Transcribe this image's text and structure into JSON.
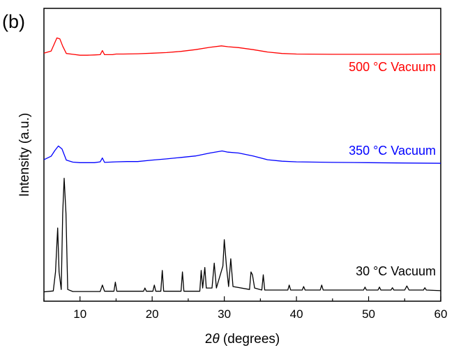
{
  "panel_label": "(b)",
  "chart_data": {
    "type": "line",
    "title": "",
    "xlabel_prefix": "2",
    "xlabel_symbol": "θ",
    "xlabel_suffix": " (degrees)",
    "ylabel": "Intensity (a.u.)",
    "xlim": [
      5,
      60
    ],
    "ylim": [
      0,
      100
    ],
    "x_ticks": [
      10,
      20,
      30,
      40,
      50,
      60
    ],
    "x_tick_labels": [
      "10",
      "20",
      "30",
      "40",
      "50",
      "60"
    ],
    "y_ticks_shown": false,
    "grid": false,
    "legend": "none (series labelled directly at right of each trace)",
    "series": [
      {
        "name": "500 °C Vacuum",
        "color": "#ff0000",
        "points": [
          [
            5,
            84.7
          ],
          [
            6,
            85.4
          ],
          [
            6.4,
            87.7
          ],
          [
            6.8,
            89.9
          ],
          [
            7.2,
            89.6
          ],
          [
            7.6,
            87.1
          ],
          [
            8.1,
            84.6
          ],
          [
            9,
            84.3
          ],
          [
            10,
            84.0
          ],
          [
            11,
            84.0
          ],
          [
            12,
            84.1
          ],
          [
            12.8,
            84.2
          ],
          [
            13.1,
            85.6
          ],
          [
            13.4,
            84.2
          ],
          [
            14.5,
            84.2
          ],
          [
            15,
            84.4
          ],
          [
            16,
            84.4
          ],
          [
            18,
            84.5
          ],
          [
            20,
            84.7
          ],
          [
            22,
            84.9
          ],
          [
            24,
            85.3
          ],
          [
            26,
            85.9
          ],
          [
            28,
            86.7
          ],
          [
            29.6,
            87.2
          ],
          [
            30.5,
            86.9
          ],
          [
            32,
            86.6
          ],
          [
            34,
            85.9
          ],
          [
            36,
            85.1
          ],
          [
            38,
            84.6
          ],
          [
            40,
            84.4
          ],
          [
            45,
            84.3
          ],
          [
            50,
            84.3
          ],
          [
            55,
            84.3
          ],
          [
            60,
            84.4
          ]
        ]
      },
      {
        "name": "350 °C Vacuum",
        "color": "#0000ff",
        "points": [
          [
            5,
            48.3
          ],
          [
            6,
            49.5
          ],
          [
            6.5,
            51.4
          ],
          [
            7,
            53.0
          ],
          [
            7.5,
            52.0
          ],
          [
            8.1,
            48.2
          ],
          [
            9,
            47.5
          ],
          [
            10,
            47.3
          ],
          [
            12,
            47.3
          ],
          [
            12.8,
            47.6
          ],
          [
            13.1,
            48.9
          ],
          [
            13.4,
            47.4
          ],
          [
            15,
            47.6
          ],
          [
            16.5,
            47.7
          ],
          [
            18,
            47.7
          ],
          [
            20,
            48.2
          ],
          [
            22,
            48.6
          ],
          [
            24,
            49.1
          ],
          [
            26,
            49.6
          ],
          [
            28,
            50.6
          ],
          [
            29.7,
            51.3
          ],
          [
            30.5,
            50.9
          ],
          [
            32,
            50.6
          ],
          [
            34,
            49.6
          ],
          [
            36,
            48.3
          ],
          [
            38,
            47.8
          ],
          [
            40,
            47.6
          ],
          [
            45,
            47.4
          ],
          [
            50,
            47.3
          ],
          [
            55,
            47.2
          ],
          [
            60,
            47.1
          ]
        ]
      },
      {
        "name": "30 °C Vacuum",
        "color": "#000000",
        "points": [
          [
            5,
            3.2
          ],
          [
            6.3,
            3.5
          ],
          [
            6.6,
            10
          ],
          [
            6.9,
            25
          ],
          [
            7.1,
            10
          ],
          [
            7.4,
            4
          ],
          [
            7.6,
            30
          ],
          [
            7.8,
            42
          ],
          [
            8.05,
            30
          ],
          [
            8.3,
            4
          ],
          [
            9,
            3.3
          ],
          [
            12.8,
            3.3
          ],
          [
            13.1,
            5.5
          ],
          [
            13.4,
            3.4
          ],
          [
            14.7,
            3.4
          ],
          [
            14.9,
            6.5
          ],
          [
            15.1,
            3.4
          ],
          [
            18.8,
            3.4
          ],
          [
            19,
            4.5
          ],
          [
            19.2,
            3.4
          ],
          [
            20.1,
            3.4
          ],
          [
            20.3,
            5.5
          ],
          [
            20.5,
            3.4
          ],
          [
            21.2,
            3.4
          ],
          [
            21.4,
            10.5
          ],
          [
            21.6,
            3.4
          ],
          [
            24.0,
            3.4
          ],
          [
            24.2,
            10
          ],
          [
            24.4,
            3.4
          ],
          [
            26.6,
            3.4
          ],
          [
            26.8,
            10.5
          ],
          [
            27.0,
            4.5
          ],
          [
            27.3,
            11.5
          ],
          [
            27.5,
            4.5
          ],
          [
            28.3,
            4.5
          ],
          [
            28.6,
            13
          ],
          [
            28.9,
            4.5
          ],
          [
            29.8,
            12
          ],
          [
            30.0,
            21
          ],
          [
            30.3,
            12
          ],
          [
            30.6,
            5
          ],
          [
            30.9,
            14.5
          ],
          [
            31.2,
            5
          ],
          [
            33.5,
            4
          ],
          [
            33.7,
            10
          ],
          [
            33.9,
            9
          ],
          [
            34.2,
            4.5
          ],
          [
            35.2,
            3.8
          ],
          [
            35.4,
            9
          ],
          [
            35.6,
            3.8
          ],
          [
            38.8,
            3.8
          ],
          [
            39,
            5.5
          ],
          [
            39.2,
            3.8
          ],
          [
            40.8,
            3.8
          ],
          [
            41,
            5
          ],
          [
            41.2,
            3.8
          ],
          [
            43.3,
            3.8
          ],
          [
            43.5,
            5.5
          ],
          [
            43.7,
            3.8
          ],
          [
            49.3,
            3.8
          ],
          [
            49.5,
            4.8
          ],
          [
            49.7,
            3.8
          ],
          [
            51.3,
            3.8
          ],
          [
            51.5,
            4.8
          ],
          [
            51.7,
            3.8
          ],
          [
            53.1,
            3.8
          ],
          [
            53.3,
            4.6
          ],
          [
            53.5,
            3.8
          ],
          [
            55,
            3.8
          ],
          [
            55.3,
            5.2
          ],
          [
            55.6,
            3.8
          ],
          [
            57.6,
            3.8
          ],
          [
            57.8,
            4.6
          ],
          [
            58,
            3.8
          ],
          [
            60,
            3.6
          ]
        ]
      }
    ]
  }
}
